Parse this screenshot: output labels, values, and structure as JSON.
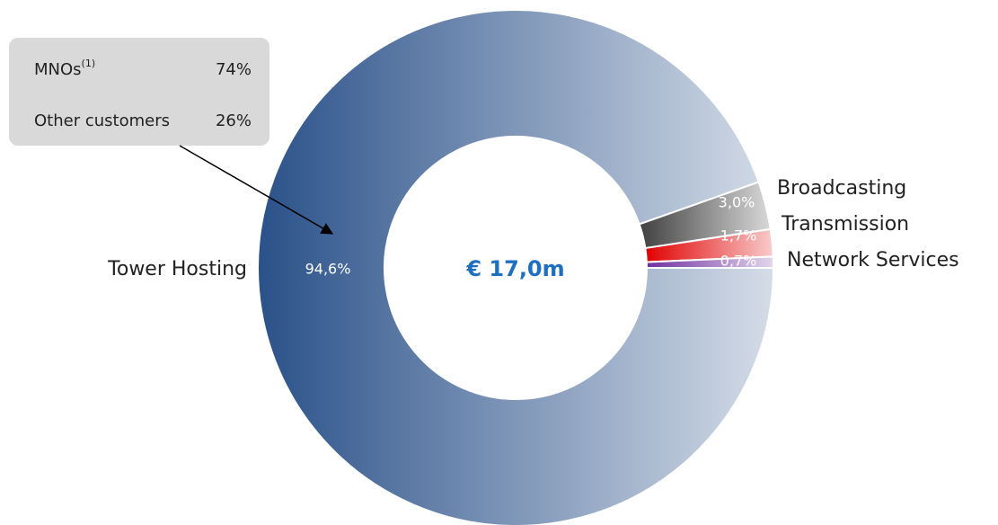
{
  "chart_data": {
    "type": "donut",
    "center_label": "€ 17,0m",
    "categories": [
      "Tower Hosting",
      "Broadcasting",
      "Transmission",
      "Network Services"
    ],
    "values": [
      94.6,
      3.0,
      1.7,
      0.7
    ],
    "value_labels": [
      "94,6%",
      "3,0%",
      "1,7%",
      "0,7%"
    ],
    "colors": [
      "#2a5189",
      "#404040",
      "#e00000",
      "#7030a0"
    ],
    "callout": {
      "rows": [
        {
          "label": "MNOs",
          "footnote": "(1)",
          "value": 74,
          "value_label": "74%"
        },
        {
          "label": "Other customers",
          "value": 26,
          "value_label": "26%"
        }
      ]
    }
  }
}
